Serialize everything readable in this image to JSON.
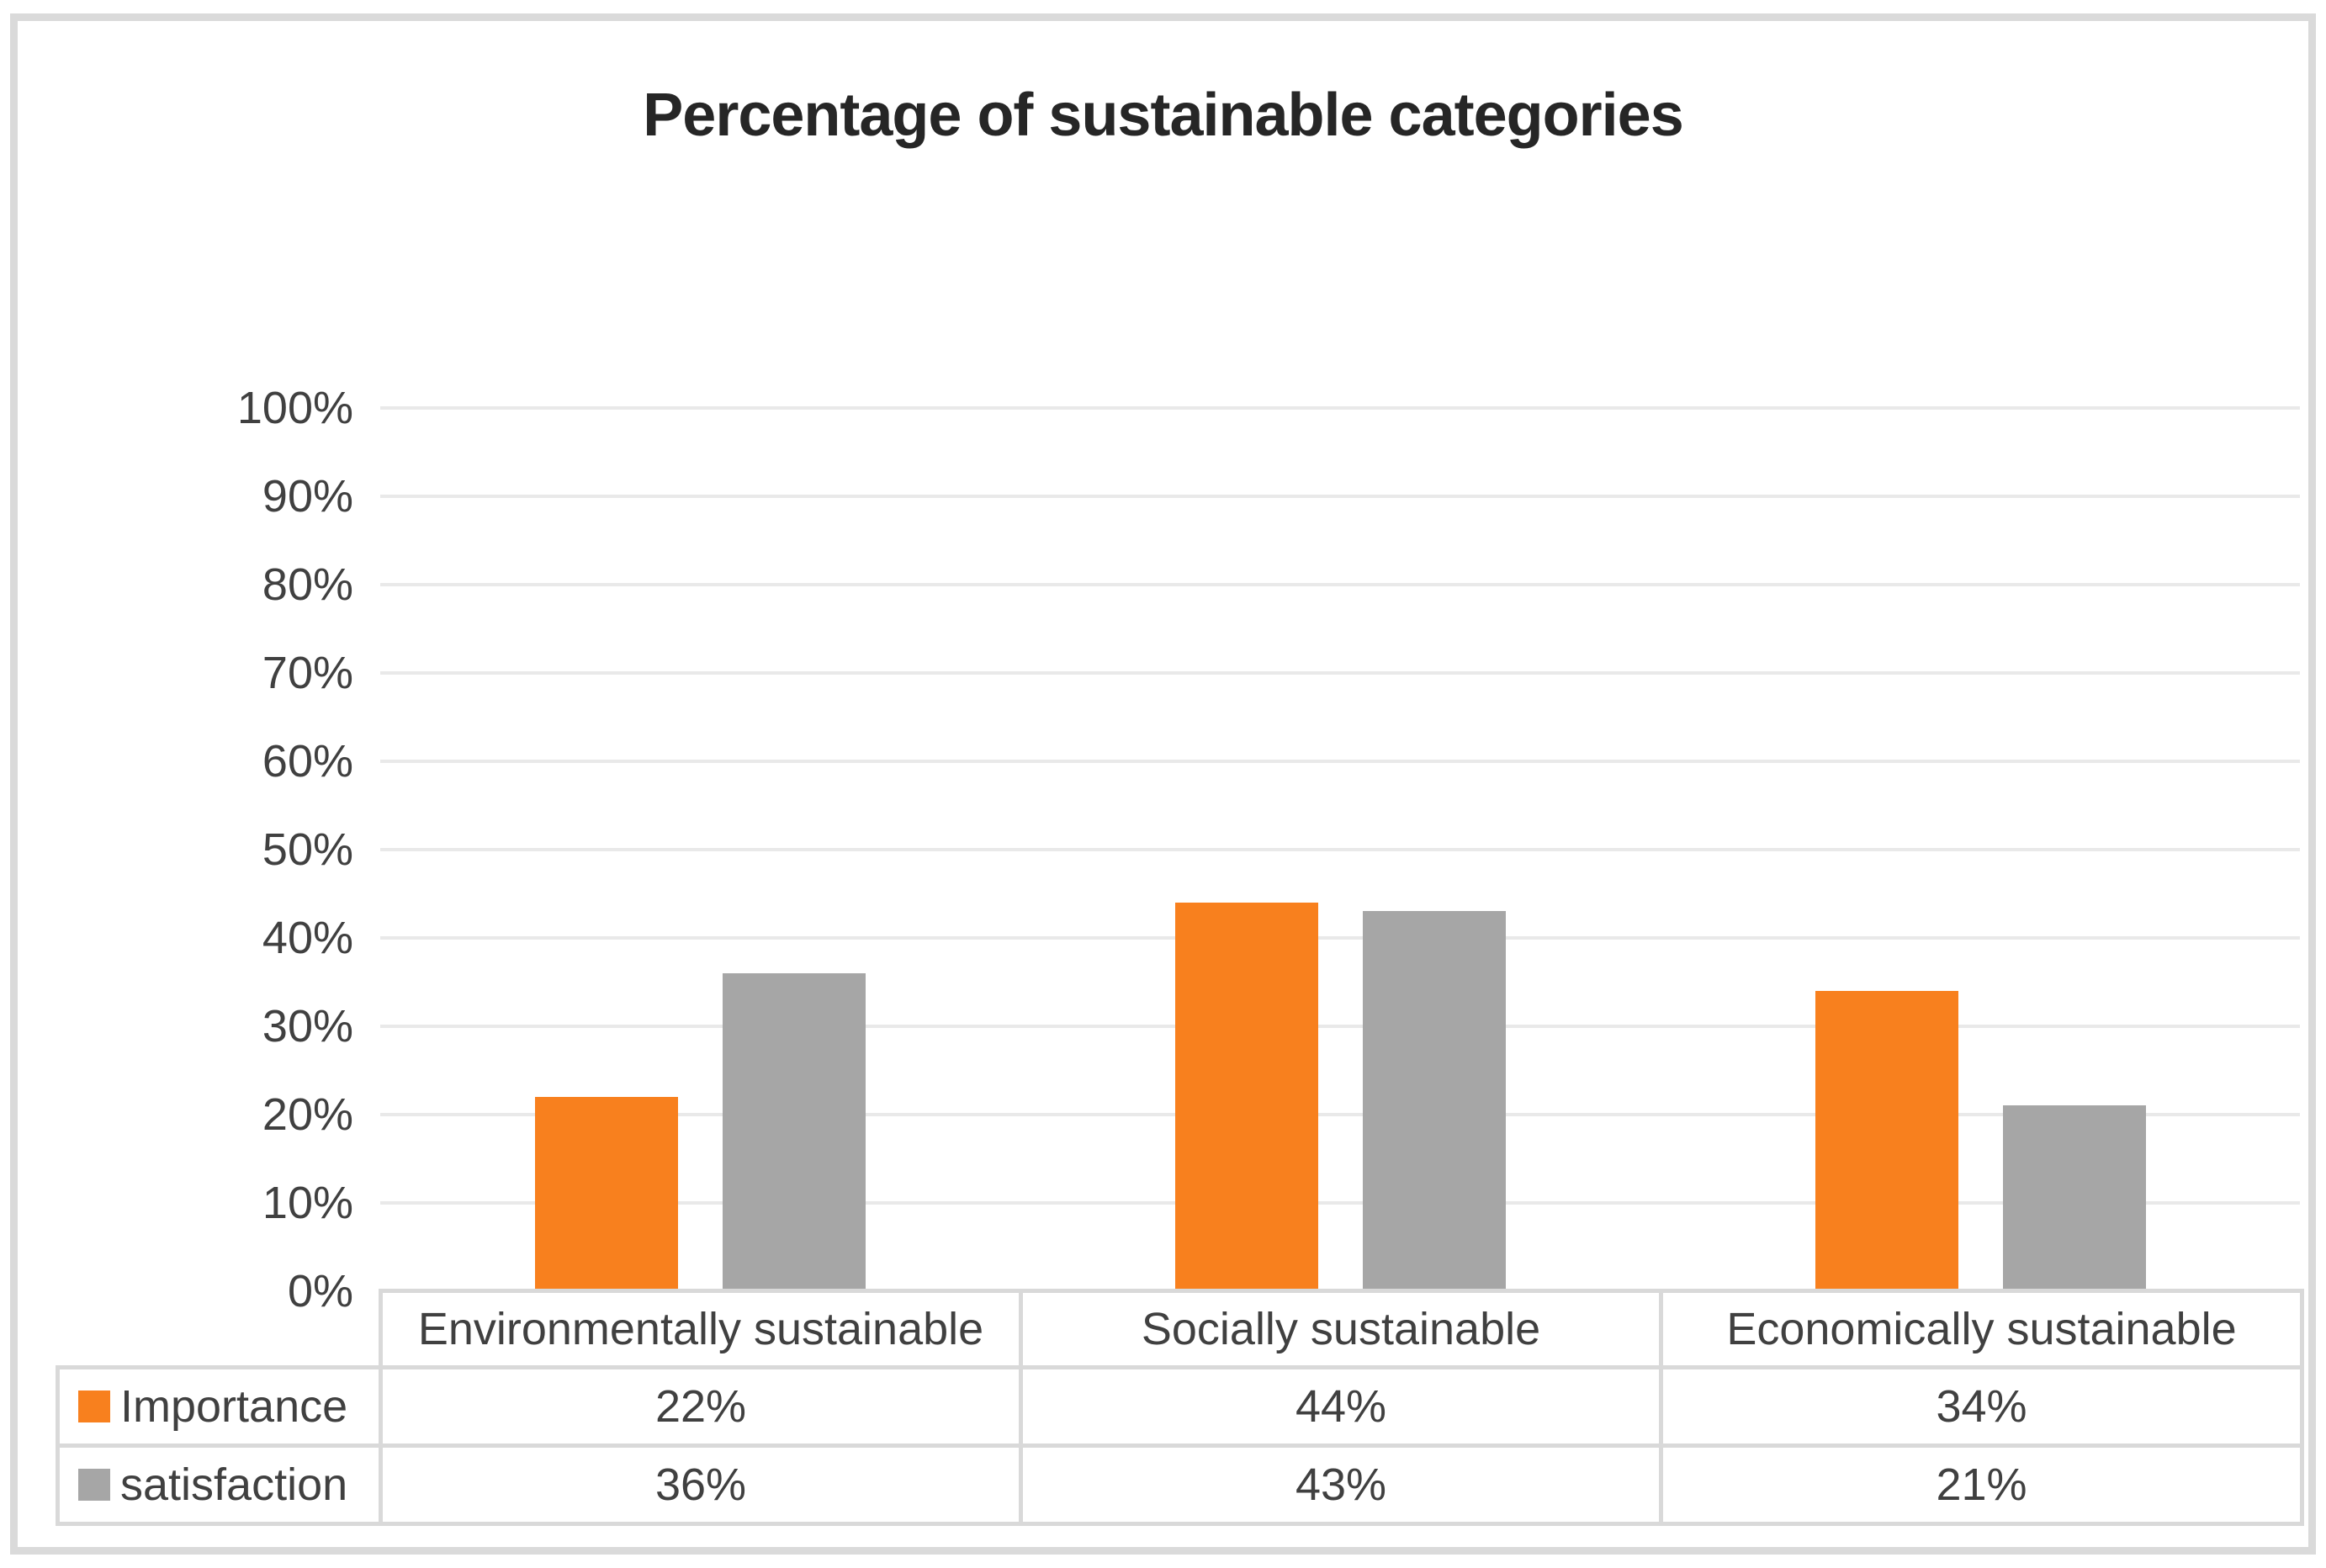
{
  "chart_data": {
    "type": "bar",
    "title": "Percentage of sustainable categories",
    "categories": [
      "Environmentally sustainable",
      "Socially sustainable",
      "Economically sustainable"
    ],
    "series": [
      {
        "name": "Importance",
        "color": "#F8801E",
        "values": [
          22,
          44,
          34
        ]
      },
      {
        "name": "satisfaction",
        "color": "#A6A6A6",
        "values": [
          36,
          43,
          21
        ]
      }
    ],
    "xlabel": "",
    "ylabel": "",
    "ylim": [
      0,
      100
    ],
    "ytick_step": 10,
    "yticks": [
      "0%",
      "10%",
      "20%",
      "30%",
      "40%",
      "50%",
      "60%",
      "70%",
      "80%",
      "90%",
      "100%"
    ],
    "grid": "horizontal",
    "legend_position": "data-table-left",
    "value_format": "percent"
  },
  "table": {
    "header_row": [
      "Environmentally sustainable",
      "Socially sustainable",
      "Economically sustainable"
    ],
    "rows": [
      {
        "label": "Importance",
        "swatch_color": "#F8801E",
        "values": [
          "22%",
          "44%",
          "34%"
        ]
      },
      {
        "label": "satisfaction",
        "swatch_color": "#A6A6A6",
        "values": [
          "36%",
          "43%",
          "21%"
        ]
      }
    ]
  },
  "colors": {
    "importance_orange": "#F8801E",
    "satisfaction_gray": "#A6A6A6",
    "gridline": "#E9E9E9",
    "table_border": "#D9D9D9",
    "frame_border": "#DADADA",
    "title_text": "#262626",
    "body_text": "#404040",
    "background": "#FFFFFF"
  }
}
